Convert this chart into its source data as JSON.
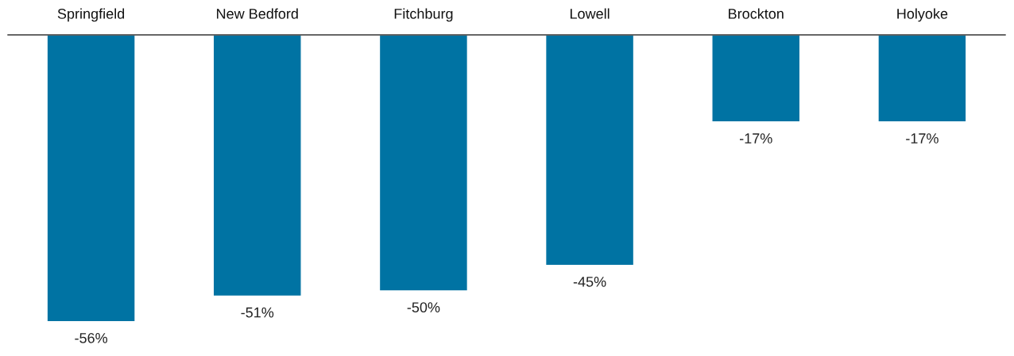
{
  "chart_data": {
    "type": "bar",
    "categories": [
      "Springfield",
      "New Bedford",
      "Fitchburg",
      "Lowell",
      "Brockton",
      "Holyoke"
    ],
    "values": [
      -56,
      -51,
      -50,
      -45,
      -17,
      -17
    ],
    "value_labels": [
      "-56%",
      "-51%",
      "-50%",
      "-45%",
      "-17%",
      "-17%"
    ],
    "color": "#0073a3",
    "tick_labels": "x",
    "grid": false,
    "legend": false
  }
}
